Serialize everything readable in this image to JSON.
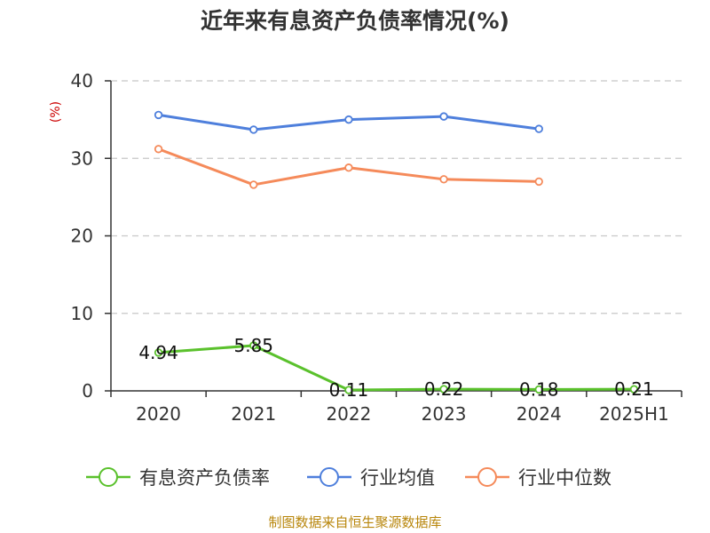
{
  "chart_data": {
    "type": "line",
    "title": "近年来有息资产负债率情况(%)",
    "y_unit": "(%)",
    "categories": [
      "2020",
      "2021",
      "2022",
      "2023",
      "2024",
      "2025H1"
    ],
    "ylim": [
      0,
      40
    ],
    "y_ticks": [
      "0",
      "10",
      "20",
      "30",
      "40"
    ],
    "grid": true,
    "legend_position": "bottom",
    "series": [
      {
        "name": "有息资产负债率",
        "color": "#5ac12c",
        "values": [
          4.94,
          5.85,
          0.11,
          0.22,
          0.18,
          0.21
        ],
        "labels": [
          "4.94",
          "5.85",
          "0.11",
          "0.22",
          "0.18",
          "0.21"
        ]
      },
      {
        "name": "行业均值",
        "color": "#4e7fdc",
        "values": [
          35.6,
          33.7,
          35.0,
          35.4,
          33.8,
          null
        ]
      },
      {
        "name": "行业中位数",
        "color": "#f58a5a",
        "values": [
          31.2,
          26.6,
          28.8,
          27.3,
          27.0,
          null
        ]
      }
    ]
  },
  "source": "制图数据来自恒生聚源数据库"
}
